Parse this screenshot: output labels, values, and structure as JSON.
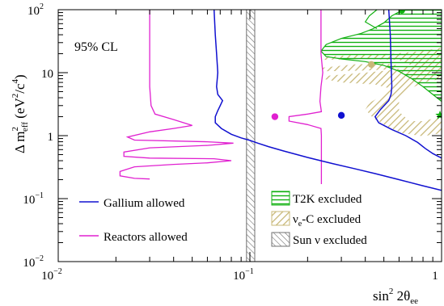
{
  "chart_data": {
    "type": "line",
    "xscale": "log",
    "yscale": "log",
    "xlim": [
      0.01,
      1
    ],
    "ylim": [
      0.01,
      100
    ],
    "xlabel": {
      "base": "sin",
      "sup": "2",
      "tail": " 2θ",
      "sub": "ee"
    },
    "ylabel": {
      "pre": "Δ m",
      "sup1": "2",
      "sub1": "eff",
      "mid": " (eV",
      "sup2": "2",
      "mid2": "/c",
      "sup3": "4",
      "post": ")"
    },
    "x_ticks": [
      {
        "value": 0.01,
        "base": "10",
        "exp": "−2"
      },
      {
        "value": 0.1,
        "base": "10",
        "exp": "−1"
      },
      {
        "value": 1,
        "base": "1",
        "exp": ""
      }
    ],
    "y_ticks": [
      {
        "value": 0.01,
        "base": "10",
        "exp": "−2"
      },
      {
        "value": 0.1,
        "base": "10",
        "exp": "−1"
      },
      {
        "value": 1,
        "base": "1",
        "exp": ""
      },
      {
        "value": 10,
        "base": "10",
        "exp": ""
      },
      {
        "value": 100,
        "base": "10",
        "exp": "2"
      }
    ],
    "annotation": "95% CL",
    "colors": {
      "gallium": "#1010d0",
      "reactors": "#e020d0",
      "t2k": "#10b010",
      "nuec": "#c8b878",
      "sun": "#707070",
      "marker_green": "#10b010"
    },
    "legend": {
      "gallium": "Gallium allowed",
      "reactors": "Reactors allowed",
      "t2k": "T2K excluded",
      "nuec_nu": "ν",
      "nuec_sub": "e",
      "nuec_rest": "-C excluded",
      "sun": "Sun ν excluded"
    },
    "sun_band": [
      0.096,
      0.106
    ],
    "gallium_left": [
      [
        0.065,
        100
      ],
      [
        0.066,
        40
      ],
      [
        0.067,
        20
      ],
      [
        0.068,
        10
      ],
      [
        0.067,
        6
      ],
      [
        0.068,
        4.5
      ],
      [
        0.072,
        3.6
      ],
      [
        0.07,
        3.0
      ],
      [
        0.068,
        2.5
      ],
      [
        0.066,
        2.0
      ],
      [
        0.066,
        1.6
      ],
      [
        0.071,
        1.3
      ],
      [
        0.08,
        1.05
      ],
      [
        0.09,
        0.92
      ],
      [
        0.1,
        0.84
      ],
      [
        0.11,
        0.76
      ],
      [
        0.125,
        0.67
      ],
      [
        0.15,
        0.57
      ],
      [
        0.2,
        0.45
      ],
      [
        0.27,
        0.36
      ],
      [
        0.35,
        0.3
      ],
      [
        0.45,
        0.25
      ],
      [
        0.6,
        0.2
      ],
      [
        0.8,
        0.16
      ],
      [
        1.0,
        0.135
      ]
    ],
    "gallium_right": [
      [
        0.53,
        100
      ],
      [
        0.54,
        40
      ],
      [
        0.545,
        15
      ],
      [
        0.55,
        6
      ],
      [
        0.545,
        4.5
      ],
      [
        0.53,
        3.6
      ],
      [
        0.48,
        2.6
      ],
      [
        0.45,
        2.0
      ],
      [
        0.47,
        1.6
      ],
      [
        0.55,
        1.25
      ],
      [
        0.65,
        1.0
      ],
      [
        0.75,
        0.78
      ],
      [
        0.82,
        0.63
      ],
      [
        0.9,
        0.52
      ],
      [
        1.0,
        0.44
      ]
    ],
    "reactors_left": [
      [
        0.03,
        100
      ],
      [
        0.03,
        20
      ],
      [
        0.03,
        6
      ],
      [
        0.0305,
        3
      ],
      [
        0.032,
        2.2
      ],
      [
        0.04,
        1.8
      ],
      [
        0.05,
        1.45
      ],
      [
        0.04,
        1.3
      ],
      [
        0.03,
        1.15
      ],
      [
        0.023,
        0.95
      ],
      [
        0.025,
        0.85
      ],
      [
        0.06,
        0.8
      ],
      [
        0.082,
        0.76
      ],
      [
        0.06,
        0.7
      ],
      [
        0.03,
        0.64
      ],
      [
        0.022,
        0.55
      ],
      [
        0.022,
        0.47
      ],
      [
        0.03,
        0.44
      ],
      [
        0.065,
        0.43
      ],
      [
        0.08,
        0.4
      ],
      [
        0.06,
        0.37
      ],
      [
        0.04,
        0.35
      ],
      [
        0.025,
        0.32
      ],
      [
        0.021,
        0.27
      ],
      [
        0.021,
        0.23
      ],
      [
        0.025,
        0.21
      ],
      [
        0.03,
        0.205
      ]
    ],
    "reactors_right": [
      [
        0.235,
        100
      ],
      [
        0.235,
        50
      ],
      [
        0.235,
        20
      ],
      [
        0.24,
        10
      ],
      [
        0.235,
        6
      ],
      [
        0.232,
        3.5
      ],
      [
        0.236,
        2.4
      ],
      [
        0.2,
        2.2
      ],
      [
        0.16,
        2.0
      ],
      [
        0.16,
        1.7
      ],
      [
        0.2,
        1.5
      ],
      [
        0.235,
        1.3
      ],
      [
        0.236,
        1.0
      ],
      [
        0.236,
        0.5
      ],
      [
        0.236,
        0.3
      ],
      [
        0.236,
        0.17
      ]
    ],
    "t2k_region": [
      [
        0.63,
        100
      ],
      [
        0.55,
        80
      ],
      [
        0.5,
        62
      ],
      [
        0.44,
        50
      ],
      [
        0.38,
        42
      ],
      [
        0.3,
        35
      ],
      [
        0.25,
        28
      ],
      [
        0.235,
        22
      ],
      [
        0.25,
        18
      ],
      [
        0.3,
        16.5
      ],
      [
        0.4,
        15
      ],
      [
        0.5,
        13
      ],
      [
        0.6,
        10.5
      ],
      [
        0.7,
        8
      ],
      [
        0.8,
        6
      ],
      [
        0.9,
        4.5
      ],
      [
        1.0,
        3.5
      ],
      [
        1.0,
        100
      ]
    ],
    "t2k_top_edge": [
      [
        0.46,
        100
      ],
      [
        0.42,
        80
      ],
      [
        0.4,
        64
      ],
      [
        0.46,
        50
      ]
    ],
    "nuec_region": [
      [
        0.24,
        12
      ],
      [
        0.35,
        13.5
      ],
      [
        0.5,
        14
      ],
      [
        0.6,
        13
      ],
      [
        0.55,
        11
      ],
      [
        0.4,
        10
      ],
      [
        0.26,
        9
      ],
      [
        0.24,
        8
      ],
      [
        0.3,
        7
      ],
      [
        0.45,
        6.5
      ],
      [
        0.55,
        5.5
      ],
      [
        0.48,
        4.2
      ],
      [
        0.42,
        3.3
      ],
      [
        0.4,
        2.6
      ],
      [
        0.44,
        1.9
      ],
      [
        0.52,
        1.4
      ],
      [
        0.62,
        1.1
      ],
      [
        0.8,
        0.98
      ],
      [
        1.0,
        1.1
      ],
      [
        1.0,
        2.0
      ],
      [
        0.8,
        1.7
      ],
      [
        0.68,
        1.7
      ],
      [
        0.6,
        2.4
      ],
      [
        0.6,
        4.0
      ],
      [
        0.68,
        5.5
      ],
      [
        0.8,
        7.0
      ],
      [
        1.0,
        8.0
      ],
      [
        1.0,
        25
      ],
      [
        0.8,
        22
      ],
      [
        0.55,
        20
      ],
      [
        0.35,
        19
      ],
      [
        0.24,
        18
      ],
      [
        0.24,
        16
      ],
      [
        0.4,
        16.5
      ],
      [
        0.6,
        16
      ],
      [
        0.7,
        13
      ],
      [
        0.6,
        11.5
      ],
      [
        0.4,
        10.8
      ],
      [
        0.24,
        10.5
      ]
    ],
    "points": [
      {
        "x": 0.135,
        "y": 2.0,
        "color": "#e020d0"
      },
      {
        "x": 0.3,
        "y": 2.1,
        "color": "#1010d0"
      },
      {
        "x": 0.43,
        "y": 13.5,
        "color": "#c8b878"
      },
      {
        "x": 0.62,
        "y": 98,
        "color": "#10b010"
      }
    ],
    "green_star": {
      "x": 1.0,
      "y": 2.1
    }
  }
}
